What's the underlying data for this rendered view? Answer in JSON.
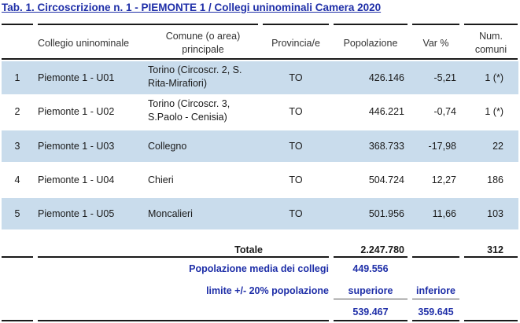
{
  "title": "Tab. 1. Circoscrizione n. 1 - PIEMONTE 1 / Collegi uninominali Camera 2020",
  "headers": {
    "collegio": "Collegio uninominale",
    "comune_l1": "Comune (o area)",
    "comune_l2": "principale",
    "provincia": "Provincia/e",
    "popolazione": "Popolazione",
    "var": "Var %",
    "num_l1": "Num.",
    "num_l2": "comuni"
  },
  "rows": [
    {
      "n": "1",
      "collegio": "Piemonte 1 - U01",
      "comune_l1": "Torino (Circoscr. 2, S.",
      "comune_l2": "Rita-Mirafiori)",
      "provincia": "TO",
      "popolazione": "426.146",
      "var": "-5,21",
      "num": "1 (*)"
    },
    {
      "n": "2",
      "collegio": "Piemonte 1 - U02",
      "comune_l1": "Torino (Circoscr. 3,",
      "comune_l2": "S.Paolo - Cenisia)",
      "provincia": "TO",
      "popolazione": "446.221",
      "var": "-0,74",
      "num": "1 (*)"
    },
    {
      "n": "3",
      "collegio": "Piemonte 1 - U03",
      "comune_l1": "Collegno",
      "comune_l2": "",
      "provincia": "TO",
      "popolazione": "368.733",
      "var": "-17,98",
      "num": "22"
    },
    {
      "n": "4",
      "collegio": "Piemonte 1 - U04",
      "comune_l1": "Chieri",
      "comune_l2": "",
      "provincia": "TO",
      "popolazione": "504.724",
      "var": "12,27",
      "num": "186"
    },
    {
      "n": "5",
      "collegio": "Piemonte 1 - U05",
      "comune_l1": "Moncalieri",
      "comune_l2": "",
      "provincia": "TO",
      "popolazione": "501.956",
      "var": "11,66",
      "num": "103"
    }
  ],
  "totale": {
    "label": "Totale",
    "popolazione": "2.247.780",
    "num": "312"
  },
  "media": {
    "label": "Popolazione media dei collegi",
    "value": "449.556"
  },
  "limite": {
    "label": "limite +/- 20% popolazione",
    "superiore_label": "superiore",
    "inferiore_label": "inferiore",
    "superiore": "539.467",
    "inferiore": "359.645"
  },
  "colors": {
    "title": "#1f2fa8",
    "band": "#c9dcec",
    "accent_text": "#1f2fa8"
  }
}
